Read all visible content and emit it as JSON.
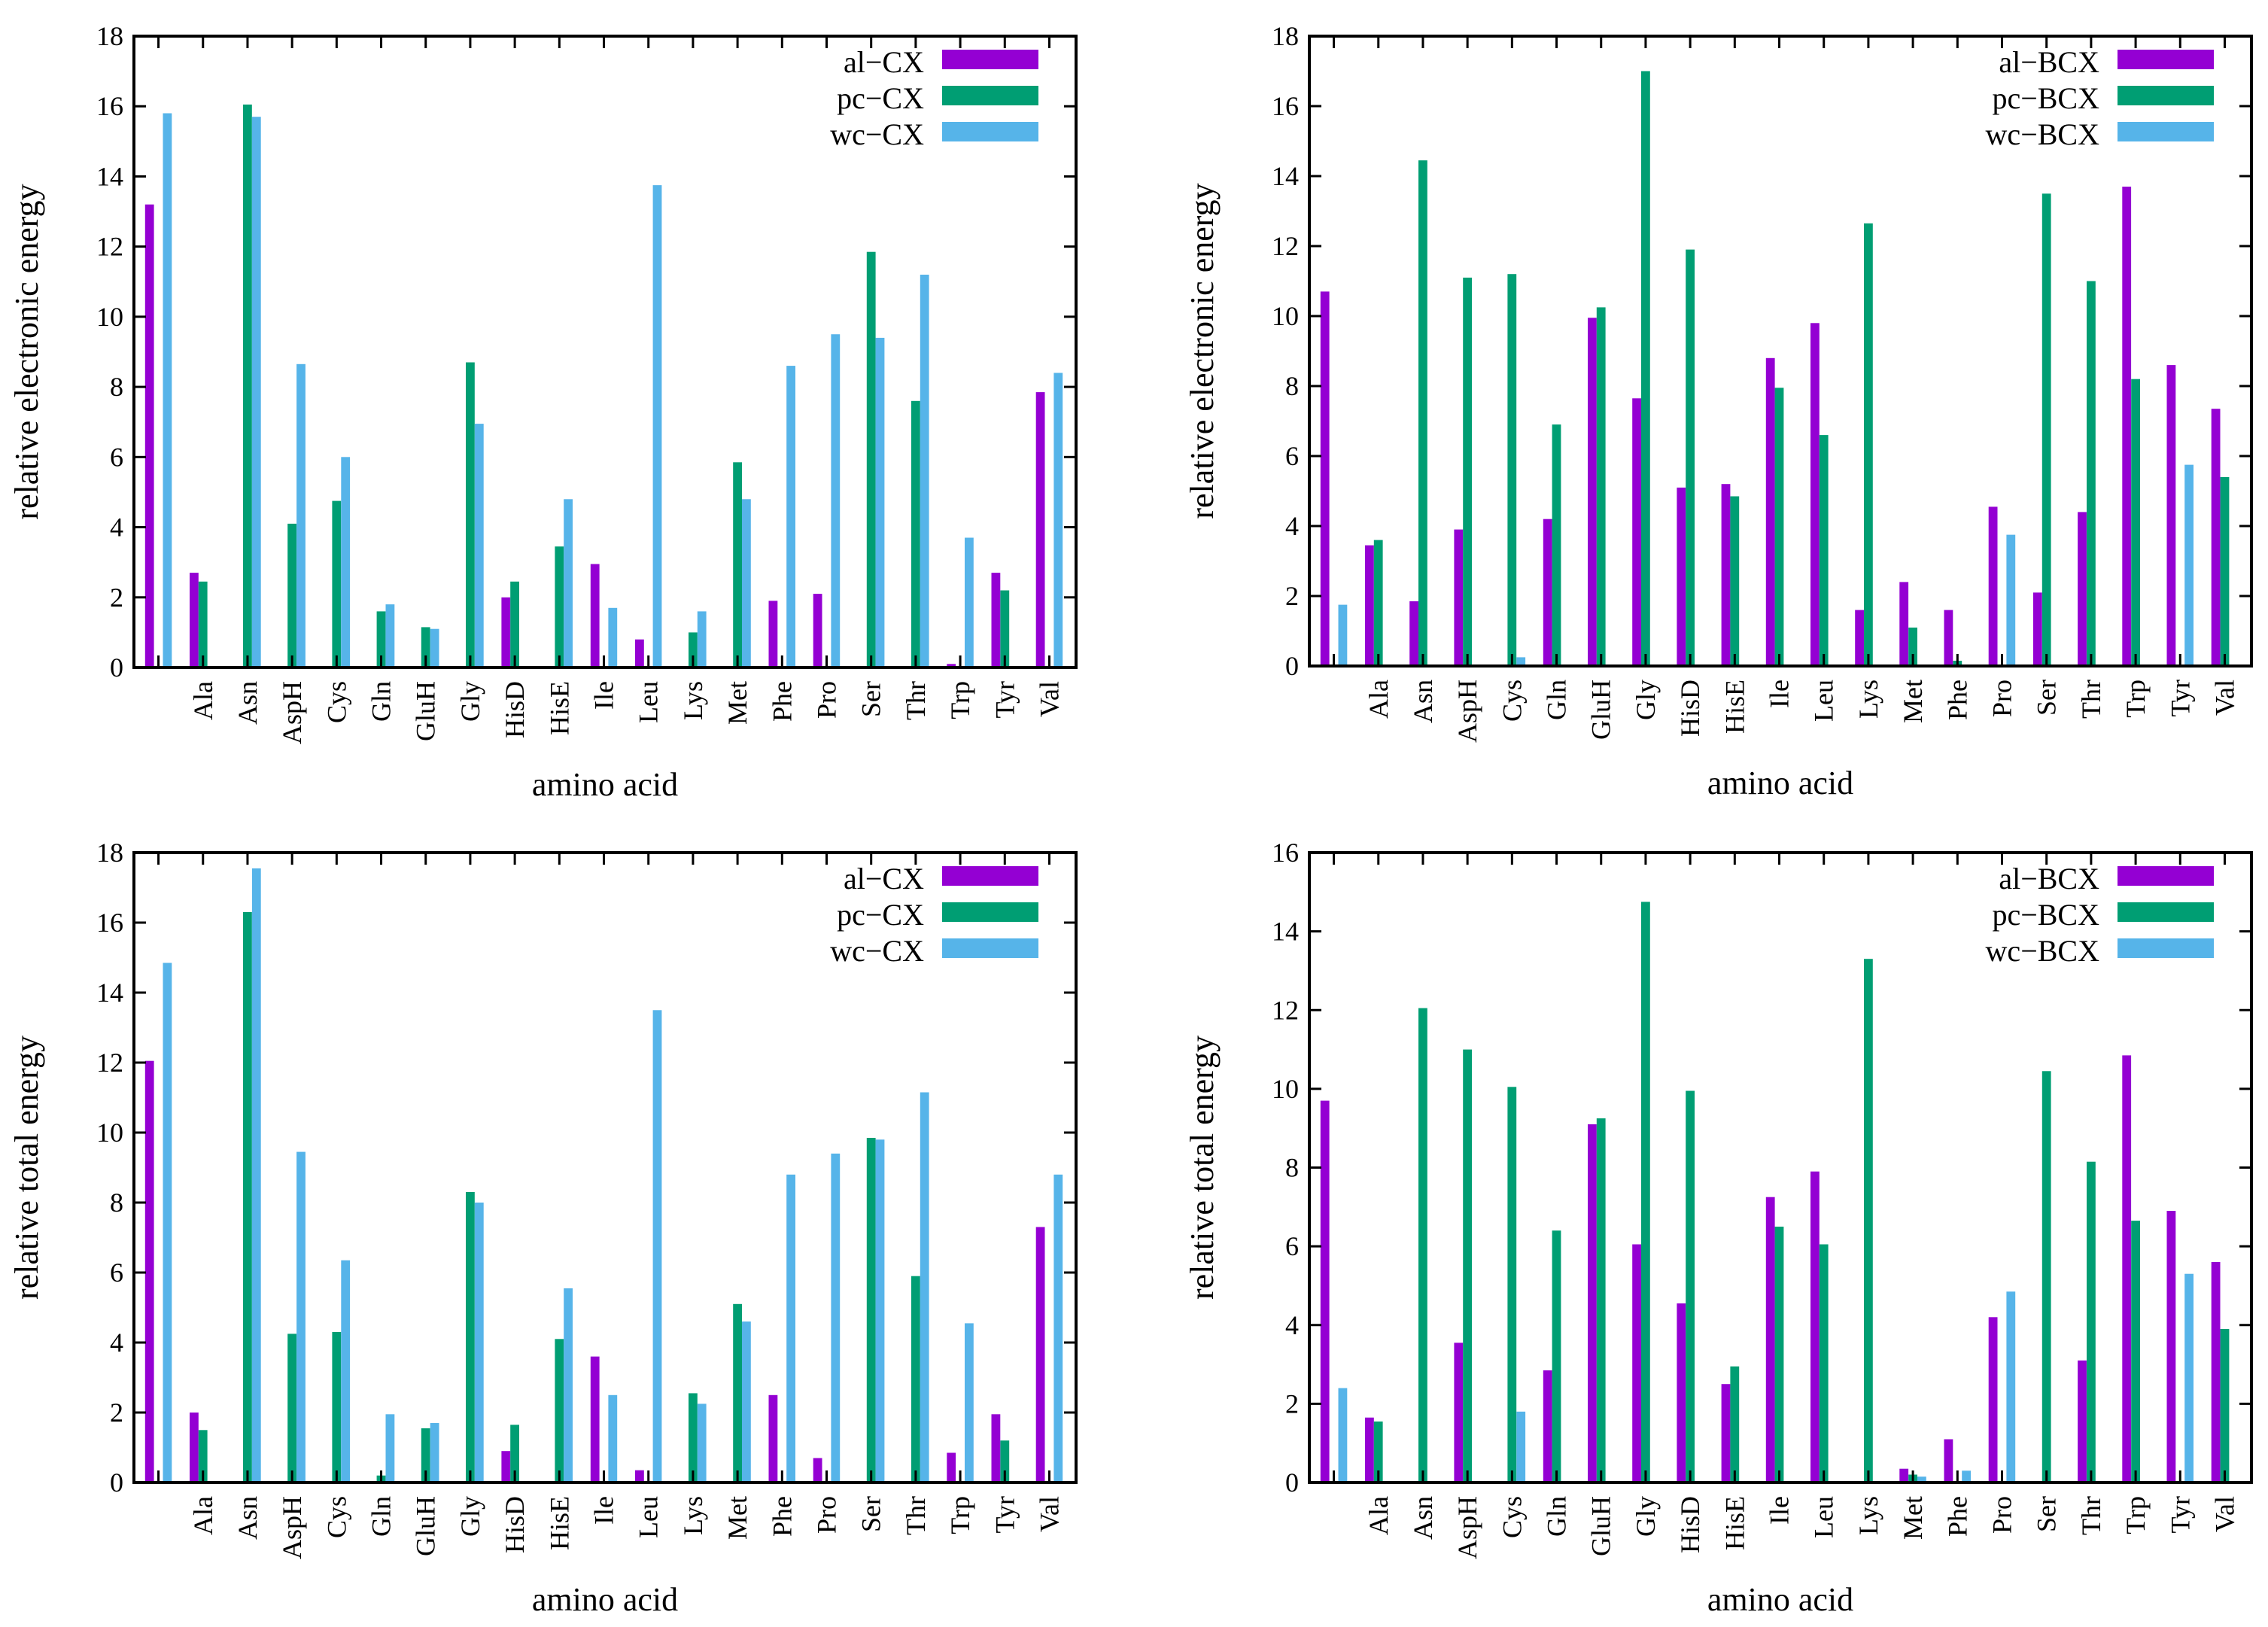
{
  "colors": {
    "al": "#9400d3",
    "pc": "#009e73",
    "wc": "#56b4e9"
  },
  "chart_data": [
    {
      "type": "bar",
      "xlabel": "amino acid",
      "ylabel": "relative electronic energy",
      "ylim": [
        0,
        18
      ],
      "yticks": [
        "0",
        "2",
        "4",
        "6",
        "8",
        "10",
        "12",
        "14",
        "16",
        "18"
      ],
      "legend_position": "top-right",
      "categories": [
        "",
        "Ala",
        "Asn",
        "AspH",
        "Cys",
        "Gln",
        "GluH",
        "Gly",
        "HisD",
        "HisE",
        "Ile",
        "Leu",
        "Lys",
        "Met",
        "Phe",
        "Pro",
        "Ser",
        "Thr",
        "Trp",
        "Tyr",
        "Val"
      ],
      "series": [
        {
          "name": "al−CX",
          "values": [
            13.2,
            2.7,
            0,
            0,
            0,
            0,
            0,
            0,
            2.0,
            0,
            2.95,
            0.8,
            0,
            0,
            1.9,
            2.1,
            0,
            0,
            0.1,
            2.7,
            7.85
          ]
        },
        {
          "name": "pc−CX",
          "values": [
            0,
            2.45,
            16.05,
            4.1,
            4.75,
            1.6,
            1.15,
            8.7,
            2.45,
            3.45,
            0,
            0,
            1.0,
            5.85,
            0,
            0,
            11.85,
            7.6,
            0,
            2.2,
            0
          ]
        },
        {
          "name": "wc−CX",
          "values": [
            15.8,
            0,
            15.7,
            8.65,
            6.0,
            1.8,
            1.1,
            6.95,
            0,
            4.8,
            1.7,
            13.75,
            1.6,
            4.8,
            8.6,
            9.5,
            9.4,
            11.2,
            3.7,
            0,
            8.4
          ]
        }
      ]
    },
    {
      "type": "bar",
      "xlabel": "amino acid",
      "ylabel": "relative electronic energy",
      "ylim": [
        0,
        18
      ],
      "yticks": [
        "0",
        "2",
        "4",
        "6",
        "8",
        "10",
        "12",
        "14",
        "16",
        "18"
      ],
      "legend_position": "top-right",
      "categories": [
        "",
        "Ala",
        "Asn",
        "AspH",
        "Cys",
        "Gln",
        "GluH",
        "Gly",
        "HisD",
        "HisE",
        "Ile",
        "Leu",
        "Lys",
        "Met",
        "Phe",
        "Pro",
        "Ser",
        "Thr",
        "Trp",
        "Tyr",
        "Val"
      ],
      "series": [
        {
          "name": "al−BCX",
          "values": [
            10.7,
            3.45,
            1.85,
            3.9,
            0,
            4.2,
            9.95,
            7.65,
            5.1,
            5.2,
            8.8,
            9.8,
            1.6,
            2.4,
            1.6,
            4.55,
            2.1,
            4.4,
            13.7,
            8.6,
            7.35
          ]
        },
        {
          "name": "pc−BCX",
          "values": [
            0,
            3.6,
            14.45,
            11.1,
            11.2,
            6.9,
            10.25,
            17.0,
            11.9,
            4.85,
            7.95,
            6.6,
            12.65,
            1.1,
            0.15,
            0,
            13.5,
            11.0,
            8.2,
            0,
            5.4
          ]
        },
        {
          "name": "wc−BCX",
          "values": [
            1.75,
            0,
            0,
            0,
            0.25,
            0,
            0,
            0,
            0,
            0,
            0,
            0,
            0,
            0,
            0,
            3.75,
            0,
            0,
            0,
            5.75,
            0
          ]
        }
      ]
    },
    {
      "type": "bar",
      "xlabel": "amino acid",
      "ylabel": "relative total energy",
      "ylim": [
        0,
        18
      ],
      "yticks": [
        "0",
        "2",
        "4",
        "6",
        "8",
        "10",
        "12",
        "14",
        "16",
        "18"
      ],
      "legend_position": "top-right",
      "categories": [
        "",
        "Ala",
        "Asn",
        "AspH",
        "Cys",
        "Gln",
        "GluH",
        "Gly",
        "HisD",
        "HisE",
        "Ile",
        "Leu",
        "Lys",
        "Met",
        "Phe",
        "Pro",
        "Ser",
        "Thr",
        "Trp",
        "Tyr",
        "Val"
      ],
      "series": [
        {
          "name": "al−CX",
          "values": [
            12.05,
            2.0,
            0,
            0,
            0,
            0,
            0,
            0,
            0.9,
            0,
            3.6,
            0.35,
            0,
            0,
            2.5,
            0.7,
            0,
            0,
            0.85,
            1.95,
            7.3
          ]
        },
        {
          "name": "pc−CX",
          "values": [
            0,
            1.5,
            16.3,
            4.25,
            4.3,
            0.2,
            1.55,
            8.3,
            1.65,
            4.1,
            0,
            0,
            2.55,
            5.1,
            0,
            0,
            9.85,
            5.9,
            0,
            1.2,
            0
          ]
        },
        {
          "name": "wc−CX",
          "values": [
            14.85,
            0,
            17.55,
            9.45,
            6.35,
            1.95,
            1.7,
            8.0,
            0,
            5.55,
            2.5,
            13.5,
            2.25,
            4.6,
            8.8,
            9.4,
            9.8,
            11.15,
            4.55,
            0,
            8.8
          ]
        }
      ]
    },
    {
      "type": "bar",
      "xlabel": "amino acid",
      "ylabel": "relative total energy",
      "ylim": [
        0,
        16
      ],
      "yticks": [
        "0",
        "2",
        "4",
        "6",
        "8",
        "10",
        "12",
        "14",
        "16"
      ],
      "legend_position": "top-right",
      "categories": [
        "",
        "Ala",
        "Asn",
        "AspH",
        "Cys",
        "Gln",
        "GluH",
        "Gly",
        "HisD",
        "HisE",
        "Ile",
        "Leu",
        "Lys",
        "Met",
        "Phe",
        "Pro",
        "Ser",
        "Thr",
        "Trp",
        "Tyr",
        "Val"
      ],
      "series": [
        {
          "name": "al−BCX",
          "values": [
            9.7,
            1.65,
            0,
            3.55,
            0,
            2.85,
            9.1,
            6.05,
            4.55,
            2.5,
            7.25,
            7.9,
            0,
            0.35,
            1.1,
            4.2,
            0,
            3.1,
            10.85,
            6.9,
            5.6
          ]
        },
        {
          "name": "pc−BCX",
          "values": [
            0,
            1.55,
            12.05,
            11.0,
            10.05,
            6.4,
            9.25,
            14.75,
            9.95,
            2.95,
            6.5,
            6.05,
            13.3,
            0.2,
            0,
            0,
            10.45,
            8.15,
            6.65,
            0,
            3.9
          ]
        },
        {
          "name": "wc−BCX",
          "values": [
            2.4,
            0,
            0,
            0,
            1.8,
            0,
            0,
            0,
            0,
            0,
            0,
            0,
            0,
            0.15,
            0.3,
            4.85,
            0,
            0,
            0,
            5.3,
            0
          ]
        }
      ]
    }
  ]
}
